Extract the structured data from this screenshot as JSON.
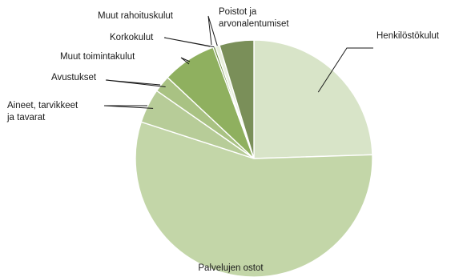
{
  "chart_data": {
    "type": "pie",
    "title": "",
    "unit": "%",
    "start_angle_deg": 0,
    "direction": "clockwise",
    "slices": [
      {
        "key": "henkilosto",
        "label": "Henkilöstökulut",
        "value": 24.5,
        "color": "#d8e4c8"
      },
      {
        "key": "palvelujen",
        "label": "Palvelujen ostot",
        "value": 55.5,
        "color": "#c3d6a8"
      },
      {
        "key": "aineet",
        "label": "Aineet, tarvikkeet ja tavarat",
        "value": 4.7,
        "color": "#b7cc98"
      },
      {
        "key": "avustukset",
        "label": "Avustukset",
        "value": 2.3,
        "color": "#a9c283"
      },
      {
        "key": "muut_toiminta",
        "label": "Muut toimintakulut",
        "value": 7.4,
        "color": "#8fb05f"
      },
      {
        "key": "korkokulut",
        "label": "Korkokulut",
        "value": 0.3,
        "color": "#6f8f44"
      },
      {
        "key": "muut_rahoitus",
        "label": "Muut rahoituskulut",
        "value": 0.6,
        "color": "#e8efdd"
      },
      {
        "key": "poistot",
        "label": "Poistot ja arvonalentumiset",
        "value": 4.7,
        "color": "#7a8f59"
      }
    ],
    "legend": "none",
    "labels_display": [
      [
        "Henkilöstökulut"
      ],
      [
        "Palvelujen ostot"
      ],
      [
        "Aineet, tarvikkeet",
        "ja tavarat"
      ],
      [
        "Avustukset"
      ],
      [
        "Muut toimintakulut"
      ],
      [
        "Korkokulut"
      ],
      [
        "Muut rahoituskulut"
      ],
      [
        "Poistot ja",
        "arvonalentumiset"
      ]
    ]
  }
}
